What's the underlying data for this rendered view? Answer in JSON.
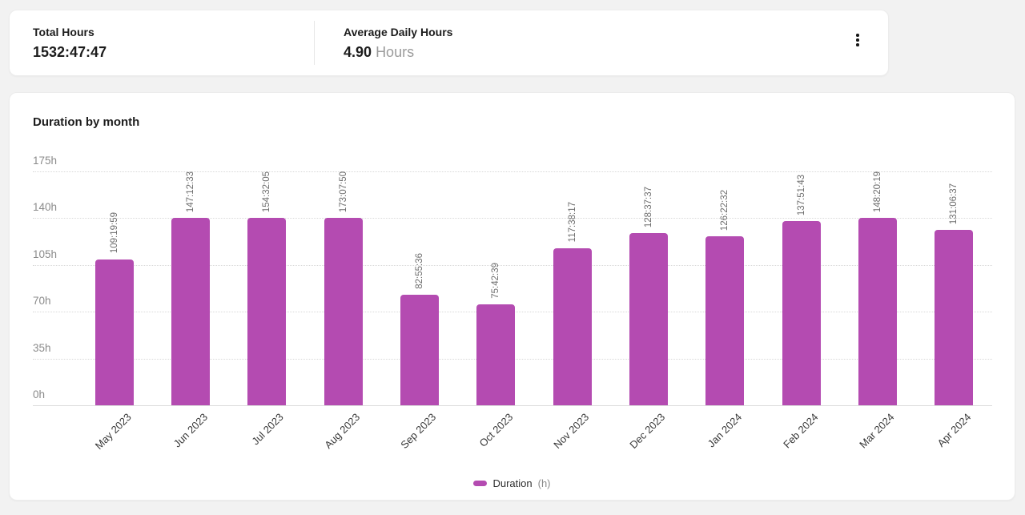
{
  "summary": {
    "total": {
      "label": "Total Hours",
      "value": "1532:47:47"
    },
    "average": {
      "label": "Average Daily Hours",
      "value": "4.90",
      "unit": "Hours"
    },
    "menu_icon": "kebab-menu-icon"
  },
  "chart_data": {
    "type": "bar",
    "title": "Duration by month",
    "categories": [
      "May 2023",
      "Jun 2023",
      "Jul 2023",
      "Aug 2023",
      "Sep 2023",
      "Oct 2023",
      "Nov 2023",
      "Dec 2023",
      "Jan 2024",
      "Feb 2024",
      "Mar 2024",
      "Apr 2024"
    ],
    "series": [
      {
        "name": "Duration (h)",
        "values_hms": [
          "109:19:59",
          "147:12:33",
          "154:32:05",
          "173:07:50",
          "82:55:36",
          "75:42:39",
          "117:38:17",
          "128:37:37",
          "126:22:32",
          "137:51:43",
          "148:20:19",
          "131:06:37"
        ],
        "values_hours": [
          109.33,
          147.21,
          154.53,
          173.13,
          82.93,
          75.71,
          117.64,
          128.63,
          126.38,
          137.86,
          148.34,
          131.11
        ]
      }
    ],
    "ylabel_ticks": [
      "0h",
      "35h",
      "70h",
      "105h",
      "140h",
      "175h"
    ],
    "ylim": [
      0,
      175
    ],
    "grid": "dotted-horizontal",
    "value_label_rotation": -90,
    "category_label_rotation": -45,
    "legend_position": "bottom-center",
    "bar_color": "#b44bb1"
  },
  "legend": {
    "label": "Duration",
    "unit": "(h)"
  },
  "colors": {
    "background": "#f2f2f2",
    "card": "#ffffff",
    "accent": "#b44bb1",
    "muted_text": "#8b8b8b",
    "dark_text": "#1d1d1d"
  }
}
